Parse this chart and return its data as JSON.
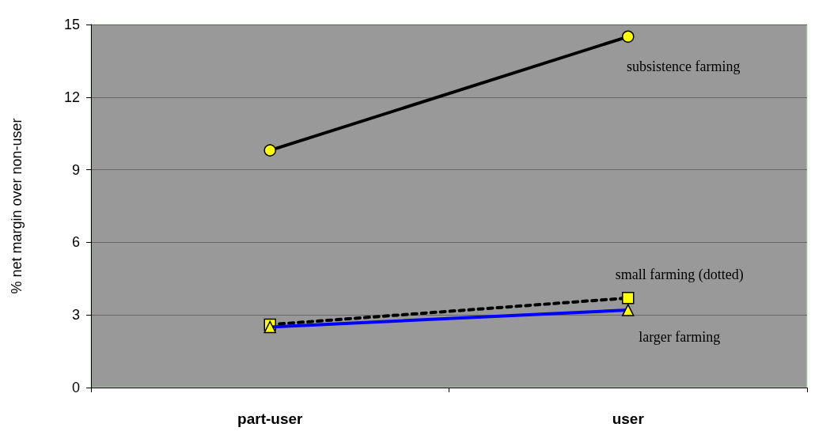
{
  "chart_data": {
    "type": "line",
    "ylabel": "% net margin over non-user",
    "categories": [
      "part-user",
      "user"
    ],
    "series": [
      {
        "name": "subsistence farming",
        "color": "#000000",
        "values": [
          9.8,
          14.5
        ],
        "marker": "circle",
        "line_style": "solid"
      },
      {
        "name": "small farming (dotted)",
        "color": "#000000",
        "values": [
          2.6,
          3.7
        ],
        "marker": "square",
        "line_style": "dotted"
      },
      {
        "name": "larger farming",
        "color": "#0000ff",
        "values": [
          2.5,
          3.2
        ],
        "marker": "triangle",
        "line_style": "solid"
      }
    ],
    "ylim": [
      0,
      15
    ],
    "yticks": [
      0,
      3,
      6,
      9,
      12,
      15
    ],
    "grid": "y",
    "legend": false
  }
}
